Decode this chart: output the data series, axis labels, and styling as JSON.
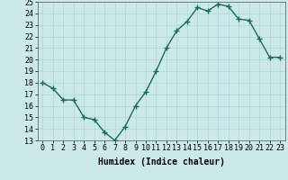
{
  "x": [
    0,
    1,
    2,
    3,
    4,
    5,
    6,
    7,
    8,
    9,
    10,
    11,
    12,
    13,
    14,
    15,
    16,
    17,
    18,
    19,
    20,
    21,
    22,
    23
  ],
  "y": [
    18.0,
    17.5,
    16.5,
    16.5,
    15.0,
    14.8,
    13.7,
    13.0,
    14.2,
    16.0,
    17.2,
    19.0,
    21.0,
    22.5,
    23.3,
    24.5,
    24.2,
    24.8,
    24.6,
    23.5,
    23.4,
    21.8,
    20.2,
    20.2
  ],
  "line_color": "#1a6b5a",
  "marker_color": "#1a6b5a",
  "bg_color": "#cce9e9",
  "grid_color": "#b0d4d4",
  "xlabel": "Humidex (Indice chaleur)",
  "ylim": [
    13,
    25
  ],
  "xlim_min": -0.5,
  "xlim_max": 23.5,
  "yticks": [
    13,
    14,
    15,
    16,
    17,
    18,
    19,
    20,
    21,
    22,
    23,
    24,
    25
  ],
  "xticks": [
    0,
    1,
    2,
    3,
    4,
    5,
    6,
    7,
    8,
    9,
    10,
    11,
    12,
    13,
    14,
    15,
    16,
    17,
    18,
    19,
    20,
    21,
    22,
    23
  ],
  "label_fontsize": 7,
  "tick_fontsize": 6,
  "linewidth": 1.0,
  "markersize": 2.5
}
